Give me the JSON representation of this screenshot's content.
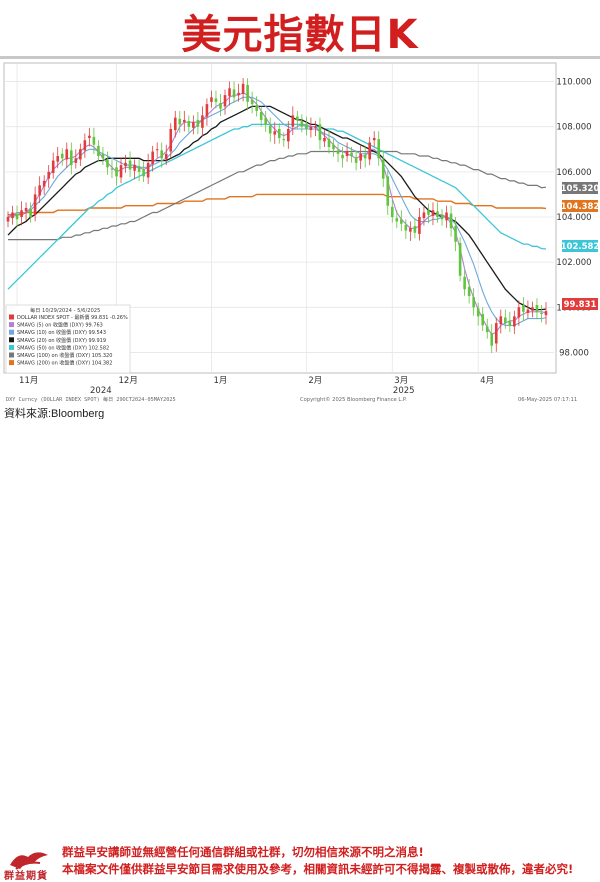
{
  "page_title": "美元指數日K",
  "source_label": "資料來源:Bloomberg",
  "disclaimers": [
    "群益早安講師並無經營任何通信群組或社群，切勿相信來源不明之消息!",
    "本檔案文件僅供群益早安節目需求使用及參考，相關資訊未經許可不得揭露、複製或散佈，違者必究!"
  ],
  "brand": {
    "name": "群益期貨",
    "color": "#c0272d"
  },
  "colors": {
    "title": "#d11f1f",
    "candle_up": "#e23b3b",
    "candle_down": "#5fc53a",
    "sma5": "#b57fd8",
    "sma10": "#6fa8dc",
    "sma20": "#1a1a1a",
    "sma50": "#3cc6d8",
    "sma100": "#777777",
    "sma200": "#e0741f"
  },
  "chart_meta": {
    "range": "10/29/2024 - 5/6/2025",
    "period": "每日",
    "footer_left": "DXY Curncy (DOLLAR INDEX SPOT) 每日 29OCT2024-05MAY2025",
    "footer_center": "Copyright© 2025 Bloomberg Finance L.P.",
    "footer_right": "06-May-2025 07:17:11"
  },
  "chart_data": {
    "type": "candlestick",
    "title": "美元指數日K",
    "ylim": [
      97.4,
      110.6
    ],
    "yticks": [
      "110.000",
      "108.000",
      "106.000",
      "104.000",
      "102.000",
      "100.000",
      "98.000"
    ],
    "x_month_labels": [
      "11月",
      "12月",
      "1月",
      "2月",
      "3月",
      "4月"
    ],
    "x_year_labels": [
      "2024",
      "2025"
    ],
    "legend": [
      {
        "label": "DOLLAR INDEX SPOT - 最新價 99.831 -0.26%",
        "color": "#e23b3b"
      },
      {
        "label": "SMAVG (5) on 收盤價 (DXY) 99.763",
        "color": "#b57fd8"
      },
      {
        "label": "SMAVG (10) on 收盤價 (DXY) 99.543",
        "color": "#6fa8dc"
      },
      {
        "label": "SMAVG (20) on 收盤價 (DXY) 99.919",
        "color": "#1a1a1a"
      },
      {
        "label": "SMAVG (50) on 收盤價 (DXY) 102.582",
        "color": "#3cc6d8"
      },
      {
        "label": "SMAVG (100) on 收盤價 (DXY) 105.320",
        "color": "#777777"
      },
      {
        "label": "SMAVG (200) on 收盤價 (DXY) 104.382",
        "color": "#e0741f"
      }
    ],
    "last_values": [
      {
        "value": "105.320",
        "color": "#777777"
      },
      {
        "value": "104.382",
        "color": "#e0741f"
      },
      {
        "value": "102.582",
        "color": "#3cc6d8"
      },
      {
        "value": "99.831",
        "color": "#e23b3b"
      }
    ],
    "closes": [
      104.0,
      104.2,
      103.9,
      104.3,
      104.4,
      104.0,
      105.0,
      105.4,
      105.6,
      106.0,
      106.5,
      106.7,
      106.6,
      107.0,
      106.3,
      106.6,
      107.0,
      107.4,
      107.6,
      107.2,
      106.7,
      106.6,
      106.2,
      106.1,
      105.8,
      106.3,
      106.4,
      106.1,
      106.3,
      106.0,
      105.8,
      106.4,
      106.9,
      107.0,
      106.6,
      106.8,
      107.9,
      108.4,
      108.1,
      108.3,
      108.0,
      108.2,
      108.0,
      108.5,
      109.0,
      109.3,
      109.1,
      108.8,
      109.4,
      109.7,
      109.3,
      109.5,
      109.9,
      109.1,
      109.0,
      108.7,
      108.3,
      108.1,
      107.7,
      107.8,
      107.5,
      107.4,
      107.9,
      108.5,
      108.3,
      108.0,
      107.9,
      108.0,
      108.0,
      107.4,
      107.5,
      107.1,
      107.0,
      106.8,
      106.6,
      106.9,
      106.7,
      106.4,
      106.8,
      106.6,
      107.3,
      107.5,
      106.6,
      105.7,
      104.5,
      104.0,
      103.8,
      103.7,
      103.4,
      103.5,
      103.3,
      104.0,
      104.2,
      104.1,
      104.3,
      104.0,
      103.9,
      104.2,
      103.5,
      102.9,
      101.4,
      100.8,
      100.5,
      100.0,
      99.6,
      99.2,
      98.9,
      98.3,
      99.3,
      99.6,
      99.3,
      99.2,
      99.6,
      100.0,
      99.8,
      99.9,
      100.0,
      99.8,
      99.7,
      99.831
    ],
    "sma5": [
      104.0,
      104.1,
      104.2,
      104.2,
      104.2,
      104.4,
      104.7,
      105.0,
      105.4,
      105.8,
      106.1,
      106.3,
      106.5,
      106.6,
      106.6,
      106.7,
      106.9,
      107.1,
      107.2,
      107.1,
      106.9,
      106.6,
      106.4,
      106.2,
      106.0,
      106.1,
      106.2,
      106.2,
      106.2,
      106.2,
      106.1,
      106.2,
      106.4,
      106.6,
      106.7,
      106.9,
      107.2,
      107.6,
      108.0,
      108.2,
      108.2,
      108.2,
      108.2,
      108.3,
      108.5,
      108.7,
      108.9,
      109.0,
      109.1,
      109.3,
      109.4,
      109.4,
      109.5,
      109.4,
      109.2,
      109.0,
      108.7,
      108.4,
      108.1,
      107.9,
      107.7,
      107.6,
      107.7,
      107.9,
      108.0,
      108.1,
      108.1,
      108.0,
      108.0,
      107.8,
      107.6,
      107.4,
      107.2,
      107.0,
      106.9,
      106.8,
      106.7,
      106.6,
      106.7,
      106.7,
      107.0,
      107.0,
      106.8,
      106.3,
      105.6,
      104.8,
      104.2,
      103.9,
      103.7,
      103.5,
      103.5,
      103.6,
      103.8,
      104.0,
      104.1,
      104.1,
      104.1,
      104.0,
      103.7,
      103.3,
      102.6,
      101.7,
      101.0,
      100.4,
      99.9,
      99.5,
      99.1,
      98.8,
      98.9,
      99.2,
      99.3,
      99.4,
      99.4,
      99.6,
      99.7,
      99.8,
      99.8,
      99.8,
      99.8,
      99.763
    ],
    "sma10": [
      104.0,
      104.0,
      104.1,
      104.2,
      104.2,
      104.3,
      104.5,
      104.7,
      104.9,
      105.2,
      105.5,
      105.8,
      106.0,
      106.2,
      106.4,
      106.5,
      106.7,
      106.9,
      107.0,
      107.0,
      106.9,
      106.8,
      106.7,
      106.6,
      106.5,
      106.4,
      106.3,
      106.3,
      106.3,
      106.2,
      106.2,
      106.2,
      106.3,
      106.4,
      106.5,
      106.6,
      106.8,
      107.0,
      107.3,
      107.5,
      107.7,
      107.9,
      108.1,
      108.3,
      108.4,
      108.5,
      108.6,
      108.7,
      108.8,
      109.0,
      109.1,
      109.2,
      109.3,
      109.3,
      109.3,
      109.2,
      109.1,
      108.9,
      108.7,
      108.5,
      108.3,
      108.1,
      108.0,
      107.9,
      107.9,
      107.9,
      107.9,
      107.9,
      107.9,
      107.8,
      107.7,
      107.6,
      107.5,
      107.3,
      107.2,
      107.1,
      107.0,
      106.9,
      106.8,
      106.8,
      106.8,
      106.8,
      106.7,
      106.4,
      106.1,
      105.7,
      105.3,
      104.9,
      104.5,
      104.1,
      103.9,
      103.8,
      103.8,
      103.8,
      103.9,
      103.9,
      104.0,
      104.0,
      103.9,
      103.7,
      103.3,
      102.9,
      102.4,
      101.9,
      101.3,
      100.7,
      100.2,
      99.8,
      99.5,
      99.3,
      99.2,
      99.2,
      99.2,
      99.3,
      99.4,
      99.5,
      99.5,
      99.5,
      99.5,
      99.543
    ],
    "sma20": [
      103.2,
      103.4,
      103.6,
      103.7,
      103.8,
      104.0,
      104.1,
      104.3,
      104.5,
      104.7,
      104.9,
      105.1,
      105.3,
      105.5,
      105.7,
      105.9,
      106.0,
      106.2,
      106.3,
      106.4,
      106.5,
      106.5,
      106.6,
      106.6,
      106.6,
      106.6,
      106.6,
      106.6,
      106.6,
      106.6,
      106.5,
      106.5,
      106.5,
      106.5,
      106.5,
      106.5,
      106.6,
      106.7,
      106.8,
      107.0,
      107.1,
      107.3,
      107.4,
      107.6,
      107.7,
      107.9,
      108.0,
      108.2,
      108.3,
      108.4,
      108.5,
      108.6,
      108.7,
      108.8,
      108.9,
      108.9,
      108.9,
      108.9,
      108.9,
      108.8,
      108.7,
      108.6,
      108.5,
      108.4,
      108.3,
      108.3,
      108.2,
      108.1,
      108.1,
      108.0,
      107.9,
      107.8,
      107.7,
      107.6,
      107.5,
      107.5,
      107.4,
      107.3,
      107.2,
      107.1,
      107.0,
      106.9,
      106.8,
      106.6,
      106.4,
      106.2,
      106.0,
      105.8,
      105.5,
      105.2,
      104.9,
      104.7,
      104.5,
      104.3,
      104.2,
      104.1,
      104.0,
      104.0,
      103.9,
      103.8,
      103.6,
      103.4,
      103.2,
      102.9,
      102.6,
      102.3,
      102.0,
      101.7,
      101.4,
      101.1,
      100.8,
      100.6,
      100.4,
      100.2,
      100.1,
      100.0,
      99.9,
      99.9,
      99.9,
      99.919
    ],
    "sma50": [
      100.8,
      101.0,
      101.2,
      101.4,
      101.6,
      101.8,
      102.0,
      102.2,
      102.4,
      102.6,
      102.8,
      103.0,
      103.2,
      103.4,
      103.6,
      103.8,
      104.0,
      104.2,
      104.4,
      104.5,
      104.7,
      104.8,
      105.0,
      105.1,
      105.3,
      105.4,
      105.5,
      105.6,
      105.7,
      105.8,
      105.9,
      106.0,
      106.1,
      106.2,
      106.3,
      106.4,
      106.5,
      106.6,
      106.7,
      106.8,
      106.9,
      107.0,
      107.1,
      107.2,
      107.3,
      107.4,
      107.5,
      107.6,
      107.7,
      107.8,
      107.9,
      107.9,
      108.0,
      108.0,
      108.1,
      108.1,
      108.1,
      108.1,
      108.1,
      108.1,
      108.1,
      108.1,
      108.1,
      108.1,
      108.1,
      108.1,
      108.0,
      108.0,
      108.0,
      108.0,
      107.9,
      107.9,
      107.9,
      107.8,
      107.8,
      107.7,
      107.6,
      107.5,
      107.4,
      107.3,
      107.2,
      107.1,
      107.0,
      106.9,
      106.8,
      106.7,
      106.6,
      106.5,
      106.4,
      106.3,
      106.2,
      106.1,
      106.0,
      105.9,
      105.8,
      105.7,
      105.6,
      105.5,
      105.4,
      105.3,
      105.1,
      104.9,
      104.7,
      104.5,
      104.3,
      104.1,
      103.9,
      103.7,
      103.5,
      103.3,
      103.2,
      103.1,
      103.0,
      102.9,
      102.8,
      102.8,
      102.7,
      102.7,
      102.6,
      102.582
    ],
    "sma100": [
      103.0,
      103.0,
      103.0,
      103.0,
      103.0,
      103.0,
      103.0,
      103.0,
      103.0,
      103.0,
      103.0,
      103.0,
      103.1,
      103.1,
      103.1,
      103.2,
      103.2,
      103.3,
      103.3,
      103.4,
      103.4,
      103.5,
      103.5,
      103.6,
      103.6,
      103.7,
      103.7,
      103.8,
      103.8,
      103.9,
      104.0,
      104.1,
      104.2,
      104.2,
      104.3,
      104.4,
      104.5,
      104.6,
      104.7,
      104.8,
      104.9,
      105.0,
      105.1,
      105.2,
      105.3,
      105.4,
      105.5,
      105.6,
      105.7,
      105.8,
      105.9,
      106.0,
      106.0,
      106.1,
      106.2,
      106.3,
      106.3,
      106.4,
      106.5,
      106.5,
      106.6,
      106.6,
      106.7,
      106.7,
      106.8,
      106.8,
      106.8,
      106.9,
      106.9,
      106.9,
      106.9,
      106.9,
      106.9,
      106.9,
      106.9,
      106.9,
      106.9,
      106.9,
      106.9,
      106.9,
      106.9,
      106.9,
      106.9,
      106.9,
      106.9,
      106.9,
      106.9,
      106.8,
      106.8,
      106.8,
      106.8,
      106.7,
      106.7,
      106.7,
      106.6,
      106.6,
      106.5,
      106.5,
      106.4,
      106.4,
      106.3,
      106.3,
      106.2,
      106.1,
      106.1,
      106.0,
      105.9,
      105.9,
      105.8,
      105.7,
      105.7,
      105.6,
      105.6,
      105.5,
      105.5,
      105.4,
      105.4,
      105.4,
      105.3,
      105.32
    ],
    "sma200": [
      104.1,
      104.1,
      104.1,
      104.1,
      104.2,
      104.2,
      104.2,
      104.2,
      104.2,
      104.2,
      104.2,
      104.3,
      104.3,
      104.3,
      104.3,
      104.3,
      104.3,
      104.3,
      104.4,
      104.4,
      104.4,
      104.4,
      104.4,
      104.4,
      104.4,
      104.4,
      104.5,
      104.5,
      104.5,
      104.5,
      104.5,
      104.5,
      104.5,
      104.6,
      104.6,
      104.6,
      104.6,
      104.6,
      104.6,
      104.7,
      104.7,
      104.7,
      104.7,
      104.7,
      104.8,
      104.8,
      104.8,
      104.8,
      104.8,
      104.9,
      104.9,
      104.9,
      104.9,
      104.9,
      104.9,
      105.0,
      105.0,
      105.0,
      105.0,
      105.0,
      105.0,
      105.0,
      105.0,
      105.0,
      105.0,
      105.0,
      105.0,
      105.0,
      105.0,
      105.0,
      105.0,
      105.0,
      105.0,
      105.0,
      105.0,
      105.0,
      105.0,
      105.0,
      105.0,
      105.0,
      105.0,
      105.0,
      105.0,
      105.0,
      104.9,
      104.9,
      104.9,
      104.9,
      104.9,
      104.9,
      104.8,
      104.8,
      104.8,
      104.8,
      104.8,
      104.7,
      104.7,
      104.7,
      104.7,
      104.6,
      104.6,
      104.6,
      104.6,
      104.5,
      104.5,
      104.5,
      104.5,
      104.5,
      104.4,
      104.4,
      104.4,
      104.4,
      104.4,
      104.4,
      104.4,
      104.4,
      104.4,
      104.4,
      104.4,
      104.382
    ]
  }
}
